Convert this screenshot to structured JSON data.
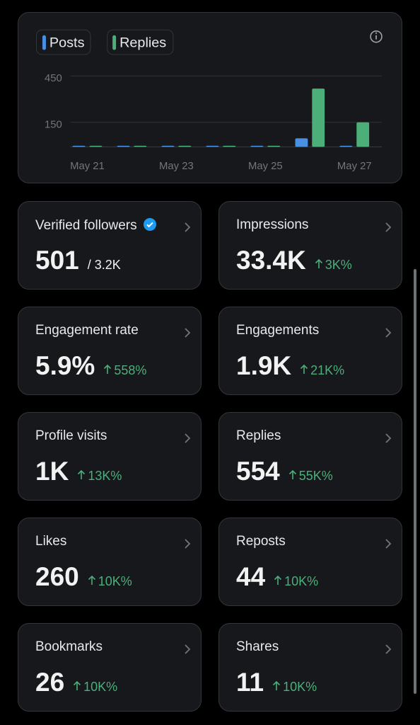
{
  "chart_data": {
    "type": "bar",
    "categories": [
      "May 21",
      null,
      "May 23",
      null,
      "May 25",
      null,
      "May 27"
    ],
    "series": [
      {
        "name": "Posts",
        "color": "#4a90e2",
        "values": [
          0,
          5,
          0,
          3,
          4,
          55,
          5
        ]
      },
      {
        "name": "Replies",
        "color": "#4caf7a",
        "values": [
          0,
          6,
          4,
          0,
          4,
          377,
          159
        ]
      }
    ],
    "ylim": [
      0,
      450
    ],
    "yticks": [
      150,
      450
    ],
    "grid": true
  },
  "cards": [
    {
      "title": "Verified followers",
      "value": "501",
      "sub": "/ 3.2K",
      "verified": true
    },
    {
      "title": "Impressions",
      "value": "33.4K",
      "change": "3K%"
    },
    {
      "title": "Engagement rate",
      "value": "5.9%",
      "change": "558%"
    },
    {
      "title": "Engagements",
      "value": "1.9K",
      "change": "21K%"
    },
    {
      "title": "Profile visits",
      "value": "1K",
      "change": "13K%"
    },
    {
      "title": "Replies",
      "value": "554",
      "change": "55K%"
    },
    {
      "title": "Likes",
      "value": "260",
      "change": "10K%"
    },
    {
      "title": "Reposts",
      "value": "44",
      "change": "10K%"
    },
    {
      "title": "Bookmarks",
      "value": "26",
      "change": "10K%"
    },
    {
      "title": "Shares",
      "value": "11",
      "change": "10K%"
    }
  ]
}
